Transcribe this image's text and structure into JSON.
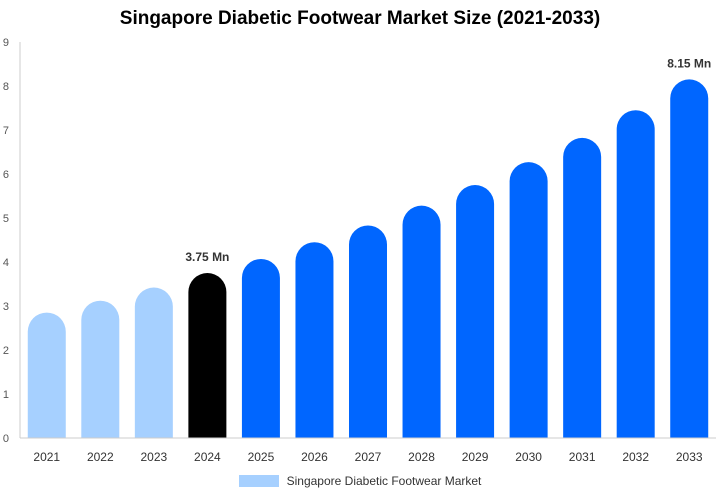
{
  "chart_data": {
    "type": "bar",
    "title": "Singapore Diabetic Footwear Market Size (2021-2033)",
    "xlabel": "",
    "ylabel": "",
    "ylim": [
      0,
      9
    ],
    "yticks": [
      "0",
      "1",
      "2",
      "3",
      "4",
      "5",
      "6",
      "7",
      "8",
      "9"
    ],
    "categories": [
      "2021",
      "2022",
      "2023",
      "2024",
      "2025",
      "2026",
      "2027",
      "2028",
      "2029",
      "2030",
      "2031",
      "2032",
      "2033"
    ],
    "series": [
      {
        "name": "Singapore Diabetic Footwear Market",
        "values": [
          2.85,
          3.12,
          3.42,
          3.75,
          4.07,
          4.45,
          4.83,
          5.28,
          5.75,
          6.27,
          6.82,
          7.45,
          8.15
        ]
      }
    ],
    "bar_colors": [
      "#a6d0ff",
      "#a6d0ff",
      "#a6d0ff",
      "#000000",
      "#0066ff",
      "#0066ff",
      "#0066ff",
      "#0066ff",
      "#0066ff",
      "#0066ff",
      "#0066ff",
      "#0066ff",
      "#0066ff"
    ],
    "annotations": [
      {
        "category": "2024",
        "text": "3.75 Mn"
      },
      {
        "category": "2033",
        "text": "8.15 Mn"
      }
    ],
    "grid": false,
    "legend_position": "bottom-center",
    "legend_color": "#a6d0ff"
  }
}
